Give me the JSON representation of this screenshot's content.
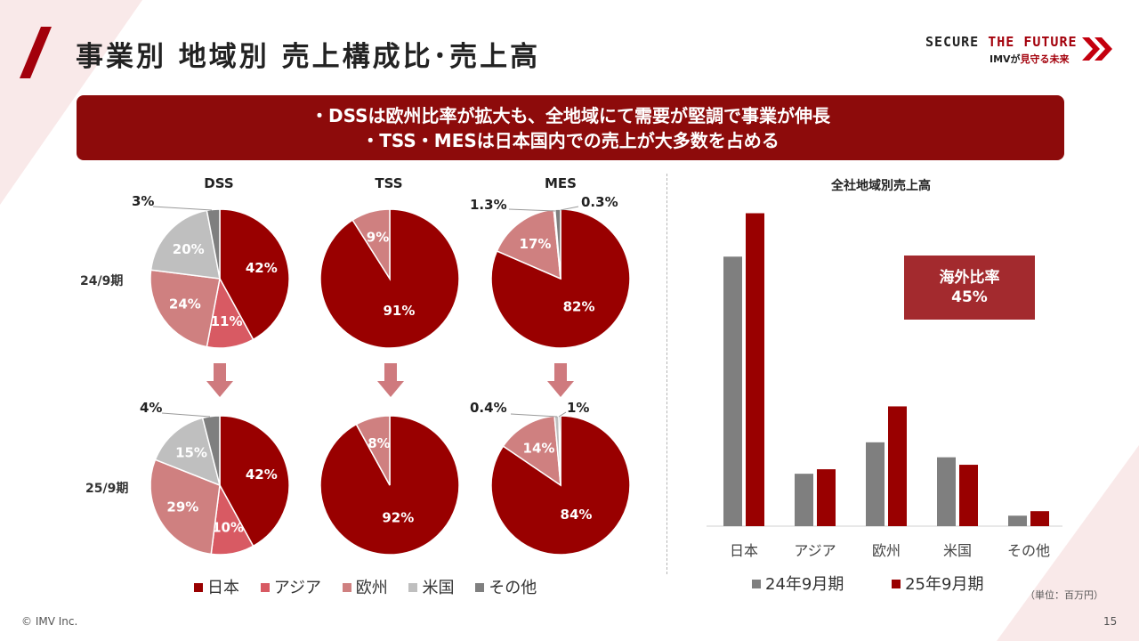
{
  "title": "事業別 地域別 売上構成比･売上高",
  "logo": {
    "part1": "SECURE",
    "part2": "THE FUTURE",
    "tagline_prefix": "IMVが",
    "tagline_suffix": "見守る未来"
  },
  "banner": {
    "line1": "・DSSは欧州比率が拡大も、全地域にて需要が堅調で事業が伸長",
    "line2": "・TSS・MESは日本国内での売上が大多数を占める"
  },
  "colors": {
    "japan": "#990000",
    "asia": "#d85a63",
    "europe": "#cf8080",
    "usa": "#bfbfbf",
    "other": "#7f7f7f",
    "bar_prev": "#7f7f7f",
    "bar_curr": "#990000"
  },
  "periods": {
    "row1": "24/9期",
    "row2": "25/9期"
  },
  "pie_legend": [
    "日本",
    "アジア",
    "欧州",
    "米国",
    "その他"
  ],
  "chart_data": [
    {
      "type": "pie",
      "title": "DSS",
      "period": "24/9期",
      "categories": [
        "日本",
        "アジア",
        "欧州",
        "米国",
        "その他"
      ],
      "values": [
        42,
        11,
        24,
        20,
        3
      ],
      "labels": [
        "42%",
        "11%",
        "24%",
        "20%",
        "3%"
      ]
    },
    {
      "type": "pie",
      "title": "TSS",
      "period": "24/9期",
      "categories": [
        "日本",
        "アジア",
        "欧州",
        "米国",
        "その他"
      ],
      "values": [
        91,
        0,
        9,
        0,
        0
      ],
      "labels": [
        "91%",
        "",
        "9%",
        "",
        ""
      ]
    },
    {
      "type": "pie",
      "title": "MES",
      "period": "24/9期",
      "categories": [
        "日本",
        "アジア",
        "欧州",
        "米国",
        "その他"
      ],
      "values": [
        82,
        0,
        17,
        0.3,
        1.3
      ],
      "labels": [
        "82%",
        "",
        "17%",
        "0.3%",
        "1.3%"
      ]
    },
    {
      "type": "pie",
      "title": "DSS",
      "period": "25/9期",
      "categories": [
        "日本",
        "アジア",
        "欧州",
        "米国",
        "その他"
      ],
      "values": [
        42,
        10,
        29,
        15,
        4
      ],
      "labels": [
        "42%",
        "10%",
        "29%",
        "15%",
        "4%"
      ]
    },
    {
      "type": "pie",
      "title": "TSS",
      "period": "25/9期",
      "categories": [
        "日本",
        "アジア",
        "欧州",
        "米国",
        "その他"
      ],
      "values": [
        92,
        0,
        8,
        0,
        0
      ],
      "labels": [
        "92%",
        "",
        "8%",
        "",
        ""
      ]
    },
    {
      "type": "pie",
      "title": "MES",
      "period": "25/9期",
      "categories": [
        "日本",
        "アジア",
        "欧州",
        "米国",
        "その他"
      ],
      "values": [
        84,
        0,
        14,
        1,
        0.4
      ],
      "labels": [
        "84%",
        "",
        "14%",
        "1%",
        "0.4%"
      ]
    },
    {
      "type": "bar",
      "title": "全社地域別売上高",
      "categories": [
        "日本",
        "アジア",
        "欧州",
        "米国",
        "その他"
      ],
      "series": [
        {
          "name": "24年9月期",
          "values": [
            900,
            175,
            280,
            230,
            35
          ]
        },
        {
          "name": "25年9月期",
          "values": [
            1045,
            190,
            400,
            205,
            50
          ]
        }
      ],
      "ylim": [
        0,
        1100
      ],
      "unit": "（単位：百万円）",
      "annotation": {
        "line1": "海外比率",
        "line2": "45%"
      }
    }
  ],
  "footer": {
    "copyright": "© IMV Inc.",
    "page": "15"
  }
}
